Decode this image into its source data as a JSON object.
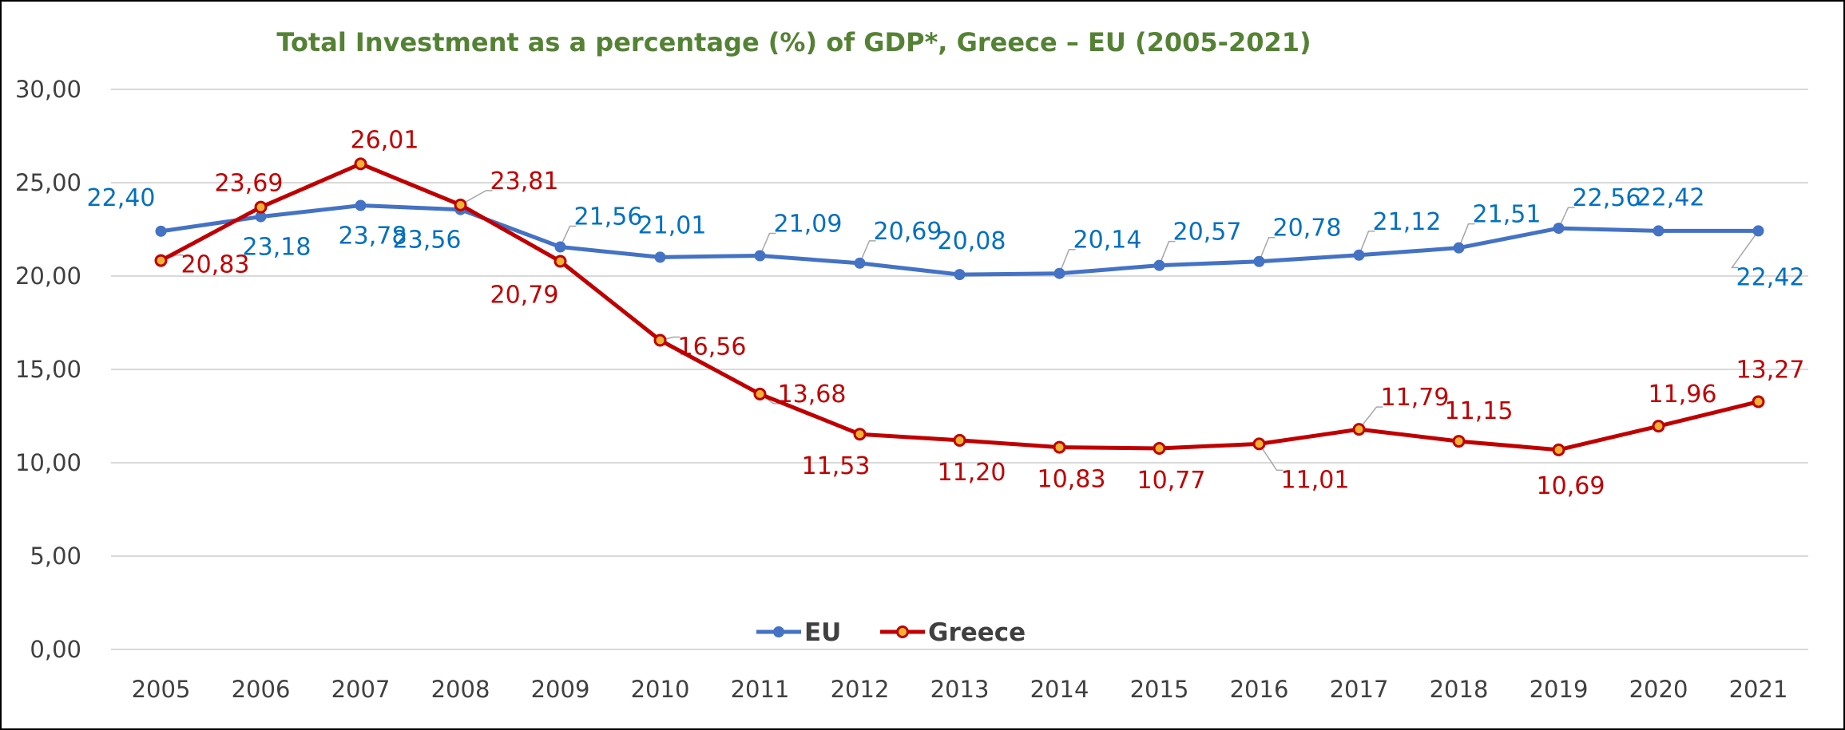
{
  "chart_data": {
    "type": "line",
    "title": "Total Investment as a percentage (%) of GDP*, Greece – EU (2005-2021)",
    "x": [
      "2005",
      "2006",
      "2007",
      "2008",
      "2009",
      "2010",
      "2011",
      "2012",
      "2013",
      "2014",
      "2015",
      "2016",
      "2017",
      "2018",
      "2019",
      "2020",
      "2021"
    ],
    "ylim": [
      0,
      30
    ],
    "yticks": [
      "0,00",
      "5,00",
      "10,00",
      "15,00",
      "20,00",
      "25,00",
      "30,00"
    ],
    "ytick_values": [
      0,
      5,
      10,
      15,
      20,
      25,
      30
    ],
    "grid": true,
    "legend_position": "bottom-center",
    "series": [
      {
        "name": "EU",
        "color": "#4472C4",
        "label_color": "#0070C0",
        "values": [
          22.4,
          23.18,
          23.78,
          23.56,
          21.56,
          21.01,
          21.09,
          20.69,
          20.08,
          20.14,
          20.57,
          20.78,
          21.12,
          21.51,
          22.56,
          22.42,
          22.42
        ],
        "labels": [
          "22,40",
          "23,18",
          "23,78",
          "23,56",
          "21,56",
          "21,01",
          "21,09",
          "20,69",
          "20,08",
          "20,14",
          "20,57",
          "20,78",
          "21,12",
          "21,51",
          "22,56",
          "22,42",
          "22,42"
        ]
      },
      {
        "name": "Greece",
        "color": "#C00000",
        "label_color": "#C00000",
        "values": [
          20.83,
          23.69,
          26.01,
          23.81,
          20.79,
          16.56,
          13.68,
          11.53,
          11.2,
          10.83,
          10.77,
          11.01,
          11.79,
          11.15,
          10.69,
          11.96,
          13.27
        ],
        "labels": [
          "20,83",
          "23,69",
          "26,01",
          "23,81",
          "20,79",
          "16,56",
          "13,68",
          "11,53",
          "11,20",
          "10,83",
          "10,77",
          "11,01",
          "11,79",
          "11,15",
          "10,69",
          "11,96",
          "13,27"
        ]
      }
    ],
    "title_color": "#548235"
  }
}
